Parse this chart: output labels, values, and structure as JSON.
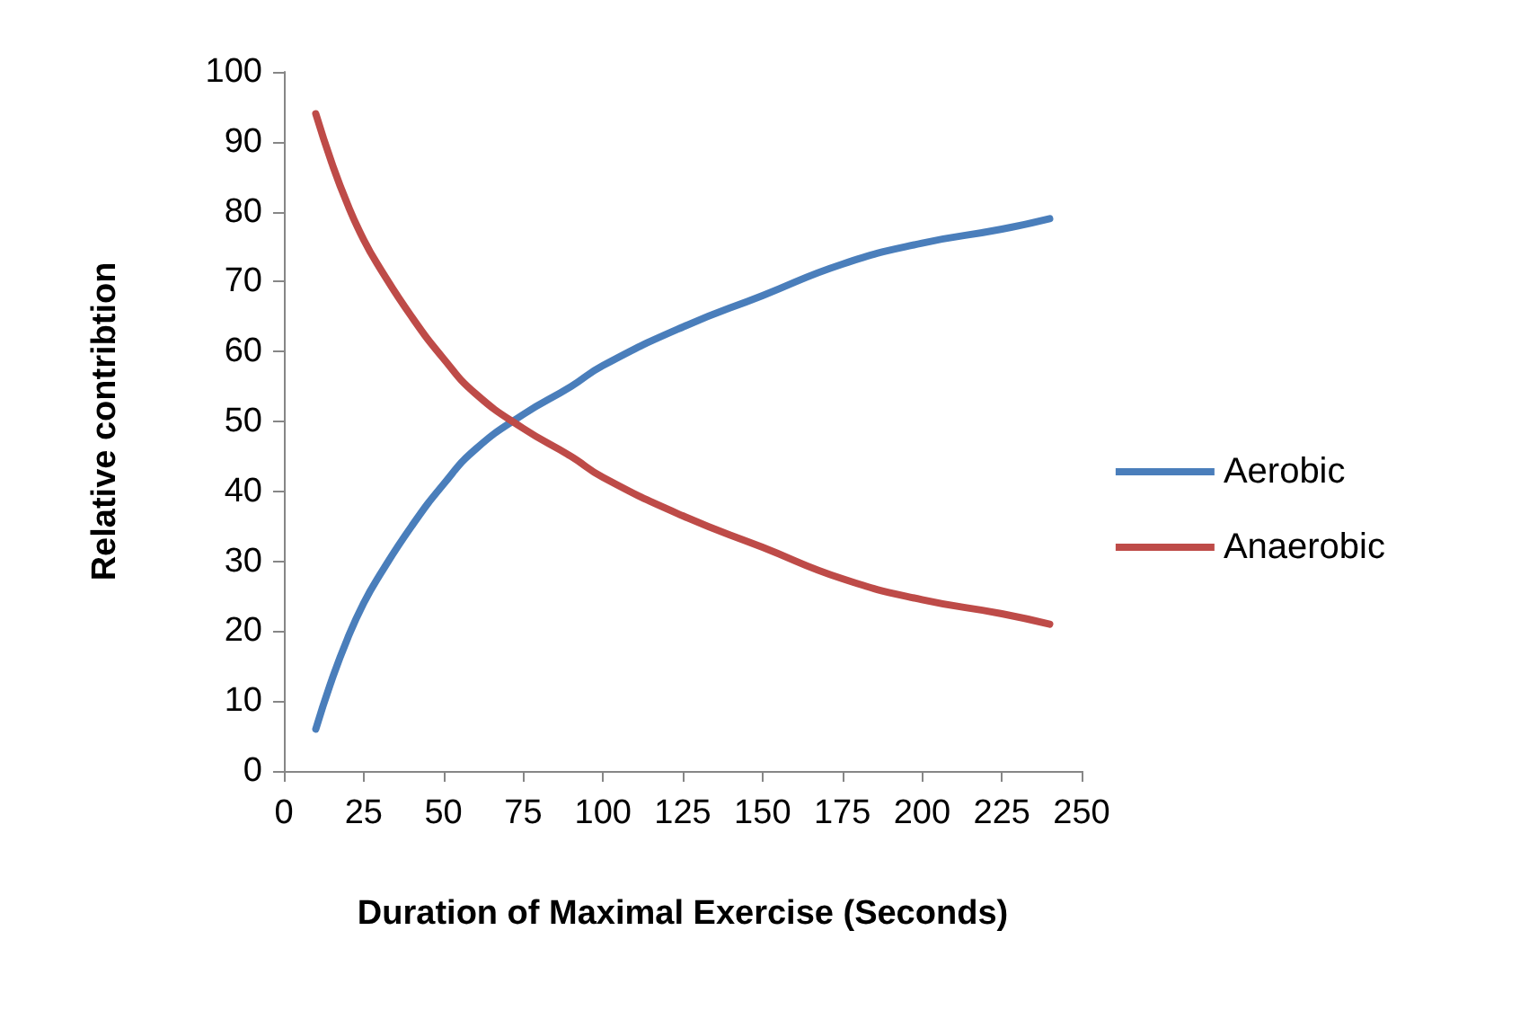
{
  "chart_data": {
    "type": "line",
    "xlabel": "Duration of Maximal Exercise (Seconds)",
    "ylabel": "Relative contribtion",
    "xlim": [
      0,
      250
    ],
    "xticks": [
      0,
      25,
      50,
      75,
      100,
      125,
      150,
      175,
      200,
      225,
      250
    ],
    "ylim": [
      0,
      100
    ],
    "yticks": [
      0,
      10,
      20,
      30,
      40,
      50,
      60,
      70,
      80,
      90,
      100
    ],
    "grid": false,
    "legend": "right",
    "marker": "none",
    "x": [
      10,
      15,
      20,
      25,
      30,
      40,
      50,
      60,
      75,
      90,
      100,
      125,
      150,
      175,
      200,
      225,
      240
    ],
    "series": [
      {
        "name": "Aerobic",
        "color": "#4a7ebb",
        "values": [
          6,
          13,
          19,
          24,
          28,
          35,
          41,
          46,
          51,
          55,
          58,
          63.5,
          68,
          72.5,
          75.5,
          77.5,
          79
        ]
      },
      {
        "name": "Anaerobic",
        "color": "#be4b48",
        "values": [
          94,
          87,
          81,
          76,
          72,
          65,
          59,
          54,
          49,
          45,
          42,
          36.5,
          32,
          27.5,
          24.5,
          22.5,
          21
        ]
      }
    ]
  }
}
